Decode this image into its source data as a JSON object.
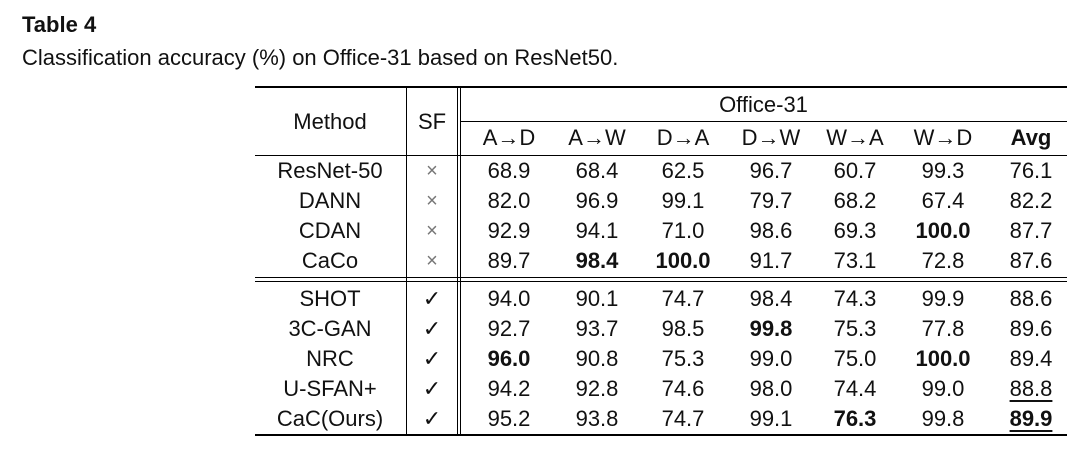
{
  "caption": {
    "title": "Table 4",
    "text": "Classification accuracy (%) on Office-31 based on ResNet50."
  },
  "table": {
    "header": {
      "method": "Method",
      "sf": "SF",
      "group": "Office-31",
      "columns": [
        "A→D",
        "A→W",
        "D→A",
        "D→W",
        "W→A",
        "W→D",
        "Avg"
      ]
    },
    "block1": [
      {
        "method": "ResNet-50",
        "sf": "×",
        "values": [
          "68.9",
          "68.4",
          "62.5",
          "96.7",
          "60.7",
          "99.3",
          "76.1"
        ],
        "bold": []
      },
      {
        "method": "DANN",
        "sf": "×",
        "values": [
          "82.0",
          "96.9",
          "99.1",
          "79.7",
          "68.2",
          "67.4",
          "82.2"
        ],
        "bold": []
      },
      {
        "method": "CDAN",
        "sf": "×",
        "values": [
          "92.9",
          "94.1",
          "71.0",
          "98.6",
          "69.3",
          "100.0",
          "87.7"
        ],
        "bold": [
          5
        ]
      },
      {
        "method": "CaCo",
        "sf": "×",
        "values": [
          "89.7",
          "98.4",
          "100.0",
          "91.7",
          "73.1",
          "72.8",
          "87.6"
        ],
        "bold": [
          1,
          2
        ]
      }
    ],
    "block2": [
      {
        "method": "SHOT",
        "sf": "✓",
        "values": [
          "94.0",
          "90.1",
          "74.7",
          "98.4",
          "74.3",
          "99.9",
          "88.6"
        ],
        "bold": []
      },
      {
        "method": "3C-GAN",
        "sf": "✓",
        "values": [
          "92.7",
          "93.7",
          "98.5",
          "99.8",
          "75.3",
          "77.8",
          "89.6"
        ],
        "bold": [
          3
        ]
      },
      {
        "method": "NRC",
        "sf": "✓",
        "values": [
          "96.0",
          "90.8",
          "75.3",
          "99.0",
          "75.0",
          "100.0",
          "89.4"
        ],
        "bold": [
          0,
          5
        ]
      },
      {
        "method": "U-SFAN+",
        "sf": "✓",
        "values": [
          "94.2",
          "92.8",
          "74.6",
          "98.0",
          "74.4",
          "99.0",
          "88.8"
        ],
        "bold": [],
        "underline": [
          6
        ]
      },
      {
        "method": "CaC(Ours)",
        "sf": "✓",
        "values": [
          "95.2",
          "93.8",
          "74.7",
          "99.1",
          "76.3",
          "99.8",
          "89.9"
        ],
        "bold": [
          4,
          6
        ],
        "underline": [
          6
        ]
      }
    ]
  }
}
